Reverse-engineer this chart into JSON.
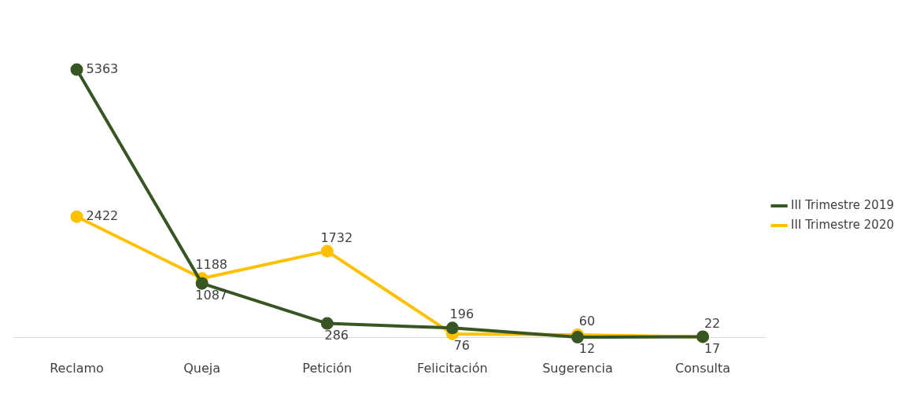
{
  "chart_data": {
    "type": "line",
    "categories": [
      "Reclamo",
      "Queja",
      "Petición",
      "Felicitación",
      "Sugerencia",
      "Consulta"
    ],
    "series": [
      {
        "name": "III Trimestre 2019",
        "color": "#375623",
        "values": [
          5363,
          1087,
          286,
          196,
          12,
          22
        ]
      },
      {
        "name": "III Trimestre 2020",
        "color": "#ffc000",
        "values": [
          2422,
          1188,
          1732,
          76,
          60,
          17
        ]
      }
    ],
    "data_labels": true,
    "legend": "right",
    "grid": false,
    "marker": "circle",
    "line_style": "solid"
  }
}
